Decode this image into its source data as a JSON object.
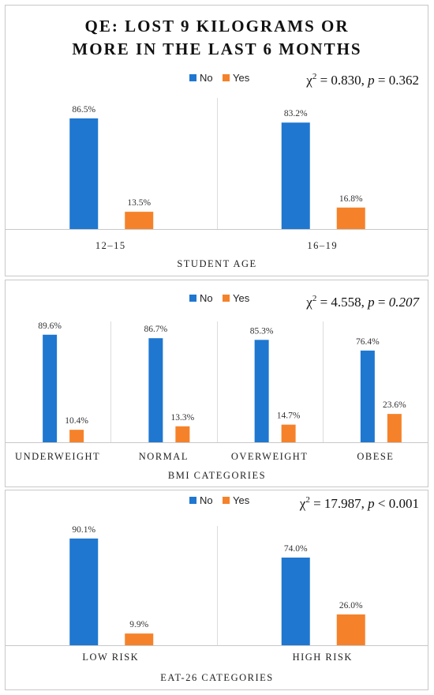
{
  "page_title_line1": "QE: LOST 9 KILOGRAMS OR",
  "page_title_line2": "MORE IN THE LAST 6 MONTHS",
  "colors": {
    "no": "#1f77d0",
    "yes": "#f5822a",
    "border": "#c8c8c8"
  },
  "chart_data": [
    {
      "type": "bar",
      "title": "",
      "legend": [
        "No",
        "Yes"
      ],
      "legend_position": "top",
      "stat": {
        "chi_value": "0.830",
        "p_relation": "=",
        "p_value": "0.362"
      },
      "xlabel": "STUDENT AGE",
      "ylabel": "",
      "ylim": [
        0,
        100
      ],
      "grid": false,
      "categories": [
        "12–15",
        "16–19"
      ],
      "series": [
        {
          "name": "No",
          "values": [
            86.5,
            83.2
          ],
          "labels": [
            "86.5%",
            "83.2%"
          ]
        },
        {
          "name": "Yes",
          "values": [
            13.5,
            16.8
          ],
          "labels": [
            "13.5%",
            "16.8%"
          ]
        }
      ]
    },
    {
      "type": "bar",
      "title": "",
      "legend": [
        "No",
        "Yes"
      ],
      "legend_position": "top",
      "stat": {
        "chi_value": "4.558",
        "p_relation": "=",
        "p_value": "0.207"
      },
      "xlabel": "BMI CATEGORIES",
      "ylabel": "",
      "ylim": [
        0,
        100
      ],
      "grid": false,
      "categories": [
        "UNDERWEIGHT",
        "NORMAL",
        "OVERWEIGHT",
        "OBESE"
      ],
      "series": [
        {
          "name": "No",
          "values": [
            89.6,
            86.7,
            85.3,
            76.4
          ],
          "labels": [
            "89.6%",
            "86.7%",
            "85.3%",
            "76.4%"
          ]
        },
        {
          "name": "Yes",
          "values": [
            10.4,
            13.3,
            14.7,
            23.6
          ],
          "labels": [
            "10.4%",
            "13.3%",
            "14.7%",
            "23.6%"
          ]
        }
      ]
    },
    {
      "type": "bar",
      "title": "",
      "legend": [
        "No",
        "Yes"
      ],
      "legend_position": "top",
      "stat": {
        "chi_value": "17.987",
        "p_relation": "<",
        "p_value": "0.001"
      },
      "xlabel": "EAT-26 CATEGORIES",
      "ylabel": "",
      "ylim": [
        0,
        100
      ],
      "grid": false,
      "categories": [
        "LOW RISK",
        "HIGH RISK"
      ],
      "series": [
        {
          "name": "No",
          "values": [
            90.1,
            74.0
          ],
          "labels": [
            "90.1%",
            "74.0%"
          ]
        },
        {
          "name": "Yes",
          "values": [
            9.9,
            26.0
          ],
          "labels": [
            "9.9%",
            "26.0%"
          ]
        }
      ]
    }
  ]
}
